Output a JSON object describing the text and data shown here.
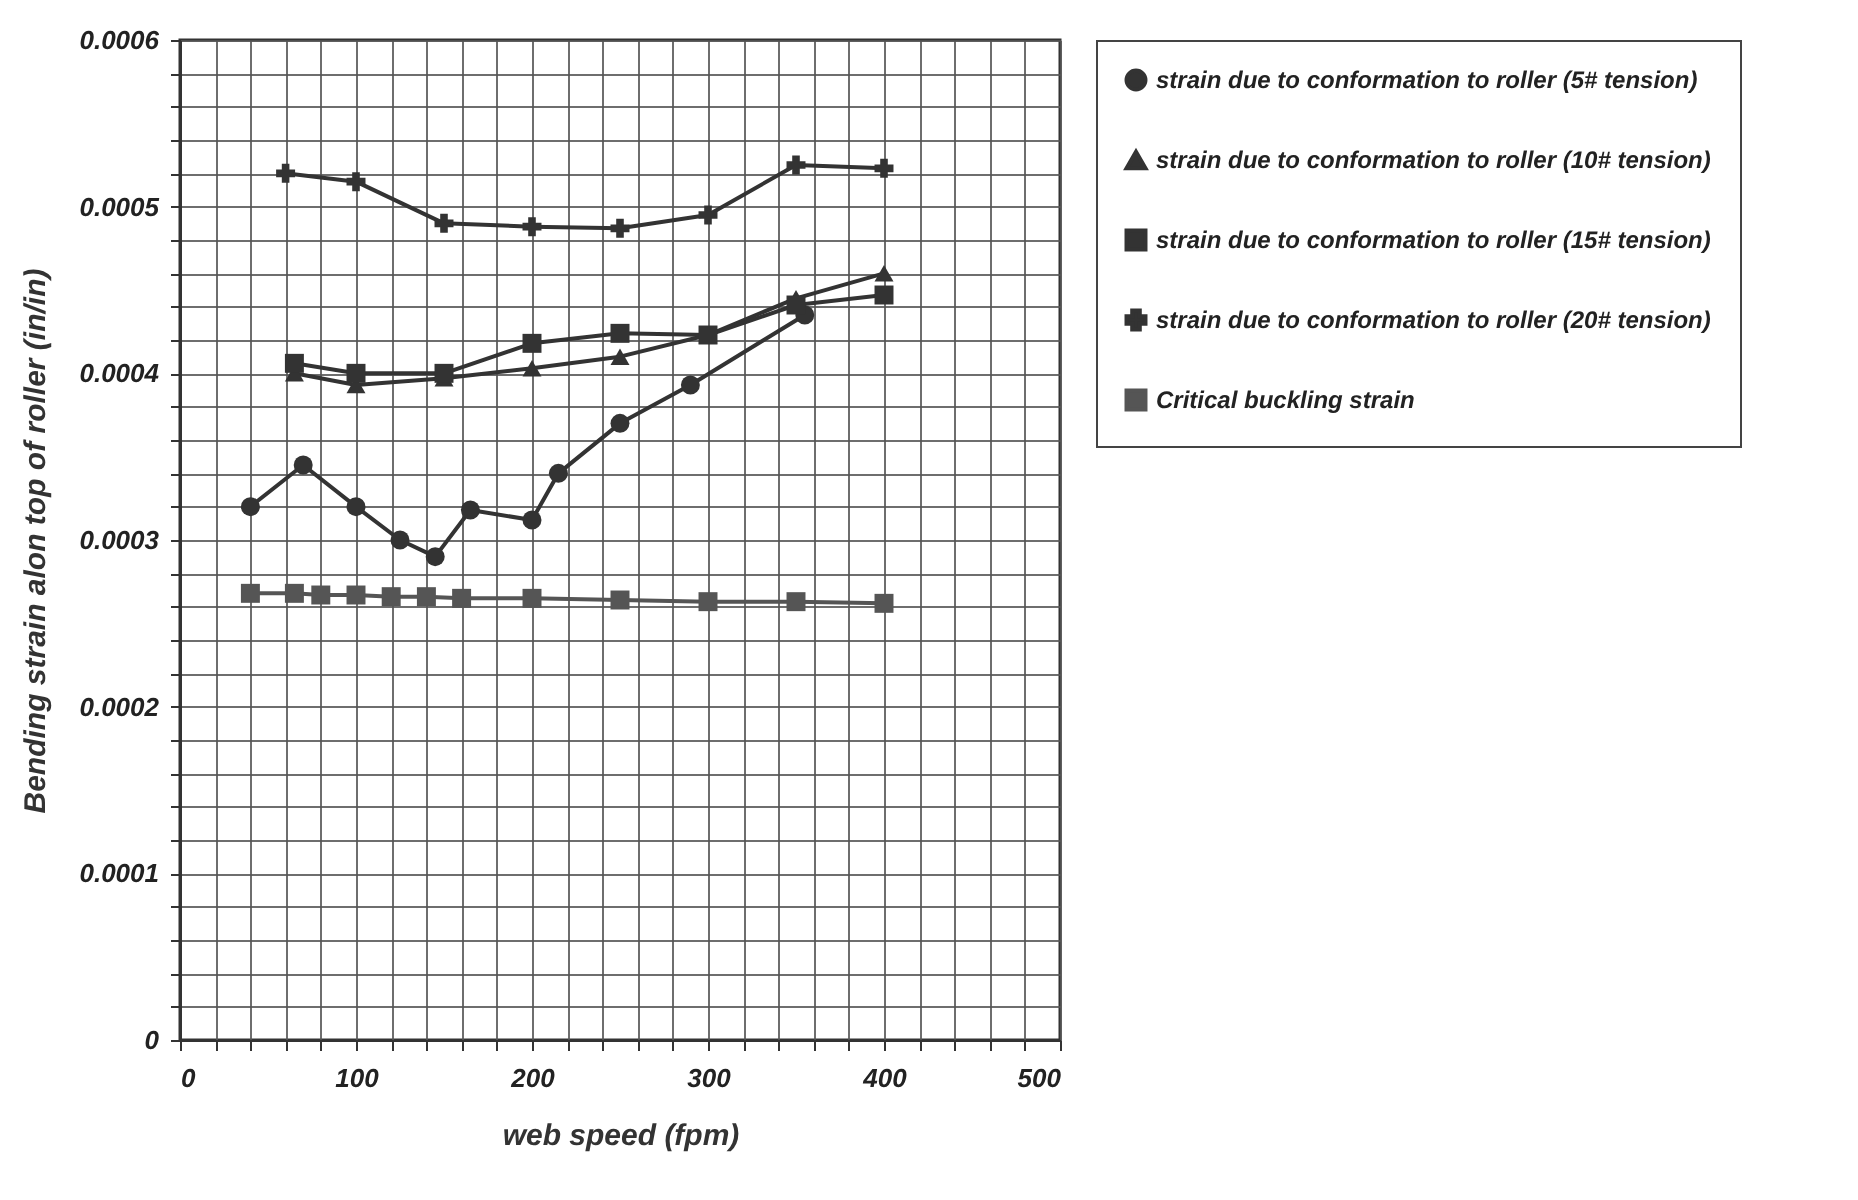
{
  "chart_data": {
    "type": "line",
    "xlabel": "web speed (fpm)",
    "ylabel": "Bending strain alon top of roller (in/in)",
    "series": [
      {
        "name": "strain due to conformation to roller (5# tension)",
        "color": "#333333",
        "marker": "circle",
        "x": [
          40,
          70,
          100,
          125,
          145,
          165,
          200,
          215,
          250,
          290,
          355
        ],
        "values": [
          0.00032,
          0.000345,
          0.00032,
          0.0003,
          0.00029,
          0.000318,
          0.000312,
          0.00034,
          0.00037,
          0.000393,
          0.000435
        ]
      },
      {
        "name": "strain due to conformation to roller (10# tension)",
        "color": "#333333",
        "marker": "triangle",
        "x": [
          65,
          100,
          150,
          200,
          250,
          300,
          350,
          400
        ],
        "values": [
          0.0004,
          0.000393,
          0.000397,
          0.000403,
          0.00041,
          0.000423,
          0.000445,
          0.00046
        ]
      },
      {
        "name": "strain due to conformation to roller (15# tension)",
        "color": "#333333",
        "marker": "square",
        "x": [
          65,
          100,
          150,
          200,
          250,
          300,
          350,
          400
        ],
        "values": [
          0.000406,
          0.0004,
          0.0004,
          0.000418,
          0.000424,
          0.000423,
          0.000441,
          0.000447
        ]
      },
      {
        "name": "strain due to conformation to roller (20# tension)",
        "color": "#333333",
        "marker": "cross",
        "x": [
          60,
          100,
          150,
          200,
          250,
          300,
          350,
          400
        ],
        "values": [
          0.00052,
          0.000515,
          0.00049,
          0.000488,
          0.000487,
          0.000495,
          0.000525,
          0.000523
        ]
      },
      {
        "name": "Critical buckling strain",
        "color": "#555555",
        "marker": "square",
        "x": [
          40,
          65,
          80,
          100,
          120,
          140,
          160,
          200,
          250,
          300,
          350,
          400
        ],
        "values": [
          0.000268,
          0.000268,
          0.000267,
          0.000267,
          0.000266,
          0.000266,
          0.000265,
          0.000265,
          0.000264,
          0.000263,
          0.000263,
          0.000262
        ]
      }
    ],
    "xlim": [
      0,
      500
    ],
    "xticks": [
      0,
      {
        "value": 20,
        "label": null
      },
      {
        "value": 40,
        "label": null
      },
      {
        "value": 60,
        "label": null
      },
      {
        "value": 80,
        "label": null
      },
      100,
      {
        "value": 120,
        "label": null
      },
      {
        "value": 140,
        "label": null
      },
      {
        "value": 160,
        "label": null
      },
      {
        "value": 180,
        "label": null
      },
      200,
      {
        "value": 220,
        "label": null
      },
      {
        "value": 240,
        "label": null
      },
      {
        "value": 260,
        "label": null
      },
      {
        "value": 280,
        "label": null
      },
      300,
      {
        "value": 320,
        "label": null
      },
      {
        "value": 340,
        "label": null
      },
      {
        "value": 360,
        "label": null
      },
      {
        "value": 380,
        "label": null
      },
      400,
      {
        "value": 420,
        "label": null
      },
      {
        "value": 440,
        "label": null
      },
      {
        "value": 460,
        "label": null
      },
      {
        "value": 480,
        "label": null
      },
      500
    ],
    "ylim": [
      0,
      0.0006
    ],
    "yticks": [
      0,
      {
        "value": 2e-05,
        "label": null
      },
      {
        "value": 4e-05,
        "label": null
      },
      {
        "value": 6e-05,
        "label": null
      },
      {
        "value": 8e-05,
        "label": null
      },
      0.0001,
      {
        "value": 0.00012,
        "label": null
      },
      {
        "value": 0.00014,
        "label": null
      },
      {
        "value": 0.00016,
        "label": null
      },
      {
        "value": 0.00018,
        "label": null
      },
      0.0002,
      {
        "value": 0.00022,
        "label": null
      },
      {
        "value": 0.00024,
        "label": null
      },
      {
        "value": 0.00026,
        "label": null
      },
      {
        "value": 0.00028,
        "label": null
      },
      0.0003,
      {
        "value": 0.00032,
        "label": null
      },
      {
        "value": 0.00034,
        "label": null
      },
      {
        "value": 0.00036,
        "label": null
      },
      {
        "value": 0.00038,
        "label": null
      },
      0.0004,
      {
        "value": 0.00042,
        "label": null
      },
      {
        "value": 0.00044,
        "label": null
      },
      {
        "value": 0.00046,
        "label": null
      },
      {
        "value": 0.00048,
        "label": null
      },
      0.0005,
      {
        "value": 0.00052,
        "label": null
      },
      {
        "value": 0.00054,
        "label": null
      },
      {
        "value": 0.00056,
        "label": null
      },
      {
        "value": 0.00058,
        "label": null
      },
      0.0006
    ],
    "grid": true,
    "legend": "right",
    "line_style": "solid"
  }
}
